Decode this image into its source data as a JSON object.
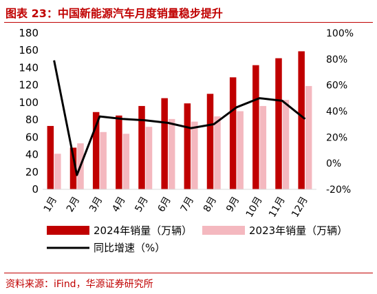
{
  "figure": {
    "title": "图表 23：中国新能源汽车月度销量稳步提升",
    "source": "资料来源：iFind，华源证券研究所"
  },
  "colors": {
    "title": "#c00000",
    "series_2024": "#c00000",
    "series_2023": "#f4b8bf",
    "yoy_line": "#000000",
    "axis_text": "#000000"
  },
  "chart_data": {
    "type": "bar",
    "categories": [
      "1月",
      "2月",
      "3月",
      "4月",
      "5月",
      "6月",
      "7月",
      "8月",
      "9月",
      "10月",
      "11月",
      "12月"
    ],
    "series": [
      {
        "name": "2024年销量（万辆）",
        "type": "bar",
        "axis": "left",
        "values": [
          73,
          48,
          89,
          85,
          96,
          105,
          99,
          110,
          129,
          143,
          151,
          159
        ]
      },
      {
        "name": "2023年销量（万辆）",
        "type": "bar",
        "axis": "left",
        "values": [
          41,
          53,
          66,
          64,
          72,
          81,
          78,
          84,
          90,
          96,
          103,
          119
        ]
      },
      {
        "name": "同比增速（%）",
        "type": "line",
        "axis": "right",
        "values": [
          79,
          -9,
          36,
          34,
          33,
          31,
          27,
          30,
          43,
          50,
          48,
          34
        ]
      }
    ],
    "y_left": {
      "min": 0,
      "max": 180,
      "ticks": [
        "0",
        "20",
        "40",
        "60",
        "80",
        "100",
        "120",
        "140",
        "160",
        "180"
      ]
    },
    "y_right": {
      "min": -20,
      "max": 100,
      "ticks": [
        "-20%",
        "0%",
        "20%",
        "40%",
        "60%",
        "80%",
        "100%"
      ]
    },
    "grid": false,
    "legend_position": "bottom"
  }
}
